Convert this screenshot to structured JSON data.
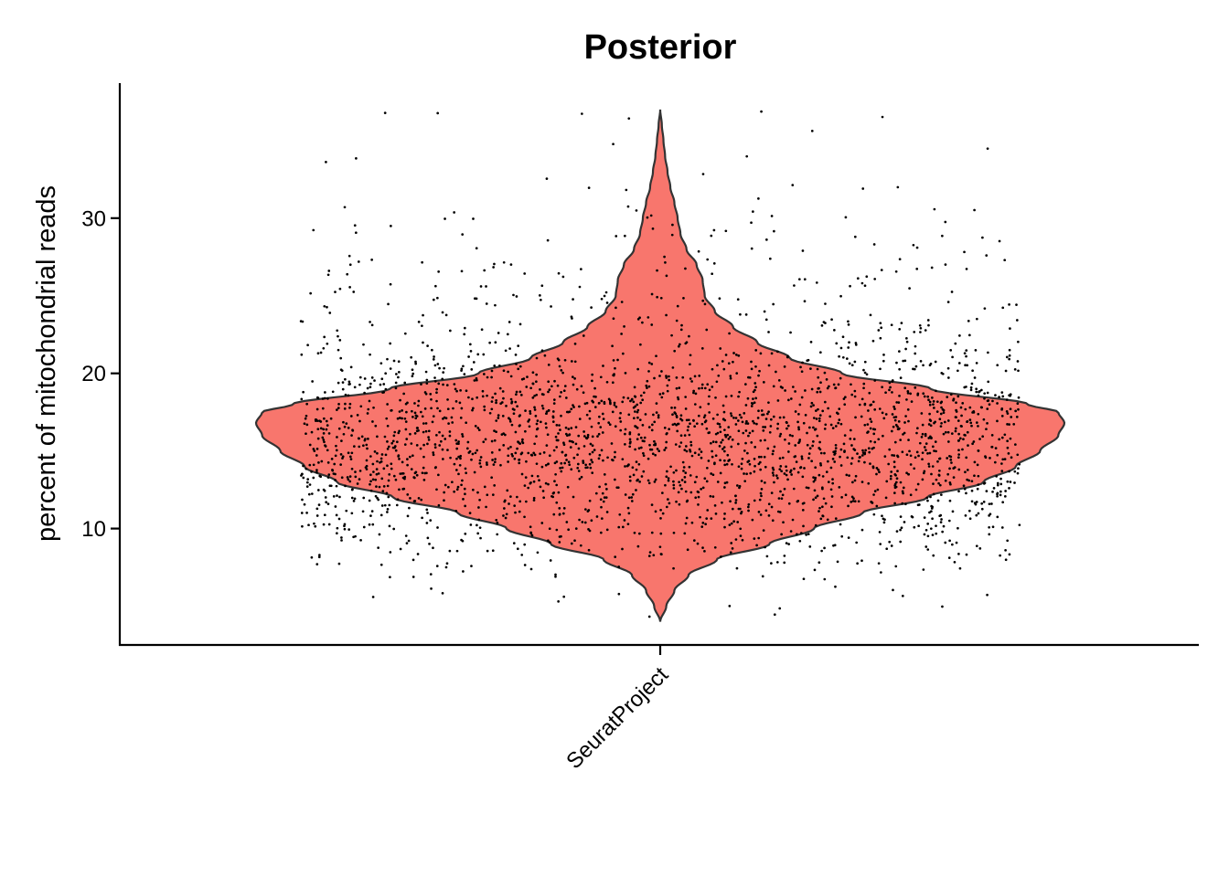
{
  "chart_data": {
    "type": "violin",
    "title": "Posterior",
    "xlabel": "",
    "ylabel": "percent of mitochondrial reads",
    "categories": [
      "SeuratProject"
    ],
    "ylim": [
      2.5,
      38.7
    ],
    "yticks": [
      10,
      20,
      30
    ],
    "grid": false,
    "legend": "none",
    "colors": {
      "violin_fill": "#F8766D",
      "violin_outline": "#333333",
      "points": "#000000",
      "axis": "#000000"
    },
    "series": [
      {
        "category": "SeuratProject",
        "min": 4.0,
        "max": 37.0,
        "mode": 16.8,
        "median": 16.5,
        "point_count": 2695,
        "density_profile": [
          {
            "y": 4.0,
            "density": 0.0
          },
          {
            "y": 5.0,
            "density": 0.015
          },
          {
            "y": 6.0,
            "density": 0.035
          },
          {
            "y": 7.0,
            "density": 0.07
          },
          {
            "y": 8.0,
            "density": 0.14
          },
          {
            "y": 9.0,
            "density": 0.27
          },
          {
            "y": 10.0,
            "density": 0.38
          },
          {
            "y": 11.0,
            "density": 0.5
          },
          {
            "y": 12.0,
            "density": 0.66
          },
          {
            "y": 13.0,
            "density": 0.8
          },
          {
            "y": 14.0,
            "density": 0.88
          },
          {
            "y": 15.0,
            "density": 0.94
          },
          {
            "y": 16.0,
            "density": 0.985
          },
          {
            "y": 16.8,
            "density": 1.0
          },
          {
            "y": 17.5,
            "density": 0.985
          },
          {
            "y": 18.0,
            "density": 0.91
          },
          {
            "y": 19.0,
            "density": 0.67
          },
          {
            "y": 20.0,
            "density": 0.45
          },
          {
            "y": 21.0,
            "density": 0.32
          },
          {
            "y": 22.0,
            "density": 0.24
          },
          {
            "y": 23.0,
            "density": 0.18
          },
          {
            "y": 24.0,
            "density": 0.135
          },
          {
            "y": 25.0,
            "density": 0.11
          },
          {
            "y": 26.0,
            "density": 0.105
          },
          {
            "y": 27.0,
            "density": 0.09
          },
          {
            "y": 28.0,
            "density": 0.065
          },
          {
            "y": 29.0,
            "density": 0.05
          },
          {
            "y": 30.0,
            "density": 0.043
          },
          {
            "y": 31.0,
            "density": 0.035
          },
          {
            "y": 32.0,
            "density": 0.025
          },
          {
            "y": 33.0,
            "density": 0.018
          },
          {
            "y": 34.0,
            "density": 0.012
          },
          {
            "y": 35.0,
            "density": 0.008
          },
          {
            "y": 36.0,
            "density": 0.004
          },
          {
            "y": 37.0,
            "density": 0.0
          }
        ]
      }
    ]
  }
}
